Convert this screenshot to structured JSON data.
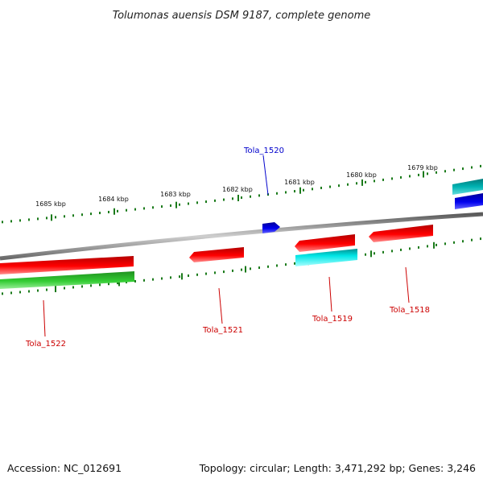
{
  "title": "Tolumonas auensis DSM 9187, complete genome",
  "footer": {
    "accession": "Accession: NC_012691",
    "info": "Topology: circular; Length: 3,471,292 bp; Genes: 3,246"
  },
  "colors": {
    "backbone": "#8c8c8c",
    "red": "#ff0000",
    "green": "#33cc33",
    "cyan": "#00e6e6",
    "teal": "#00b3b3",
    "blue": "#0000ee",
    "tick": "#1a7a1a",
    "label_red": "#cc0000",
    "label_blue": "#0000cc"
  },
  "ticks": {
    "major_labels": [
      "1685 kbp",
      "1684 kbp",
      "1683 kbp",
      "1682 kbp",
      "1681 kbp",
      "1680 kbp",
      "1679 kbp"
    ]
  },
  "genes": [
    {
      "name": "Tola_1522",
      "color": "red",
      "strand": "-"
    },
    {
      "name": "Tola_1521",
      "color": "red",
      "strand": "-"
    },
    {
      "name": "Tola_1520",
      "color": "blue",
      "strand": "+"
    },
    {
      "name": "Tola_1519",
      "color": "red",
      "strand": "-"
    },
    {
      "name": "Tola_1518",
      "color": "red",
      "strand": "-"
    }
  ]
}
